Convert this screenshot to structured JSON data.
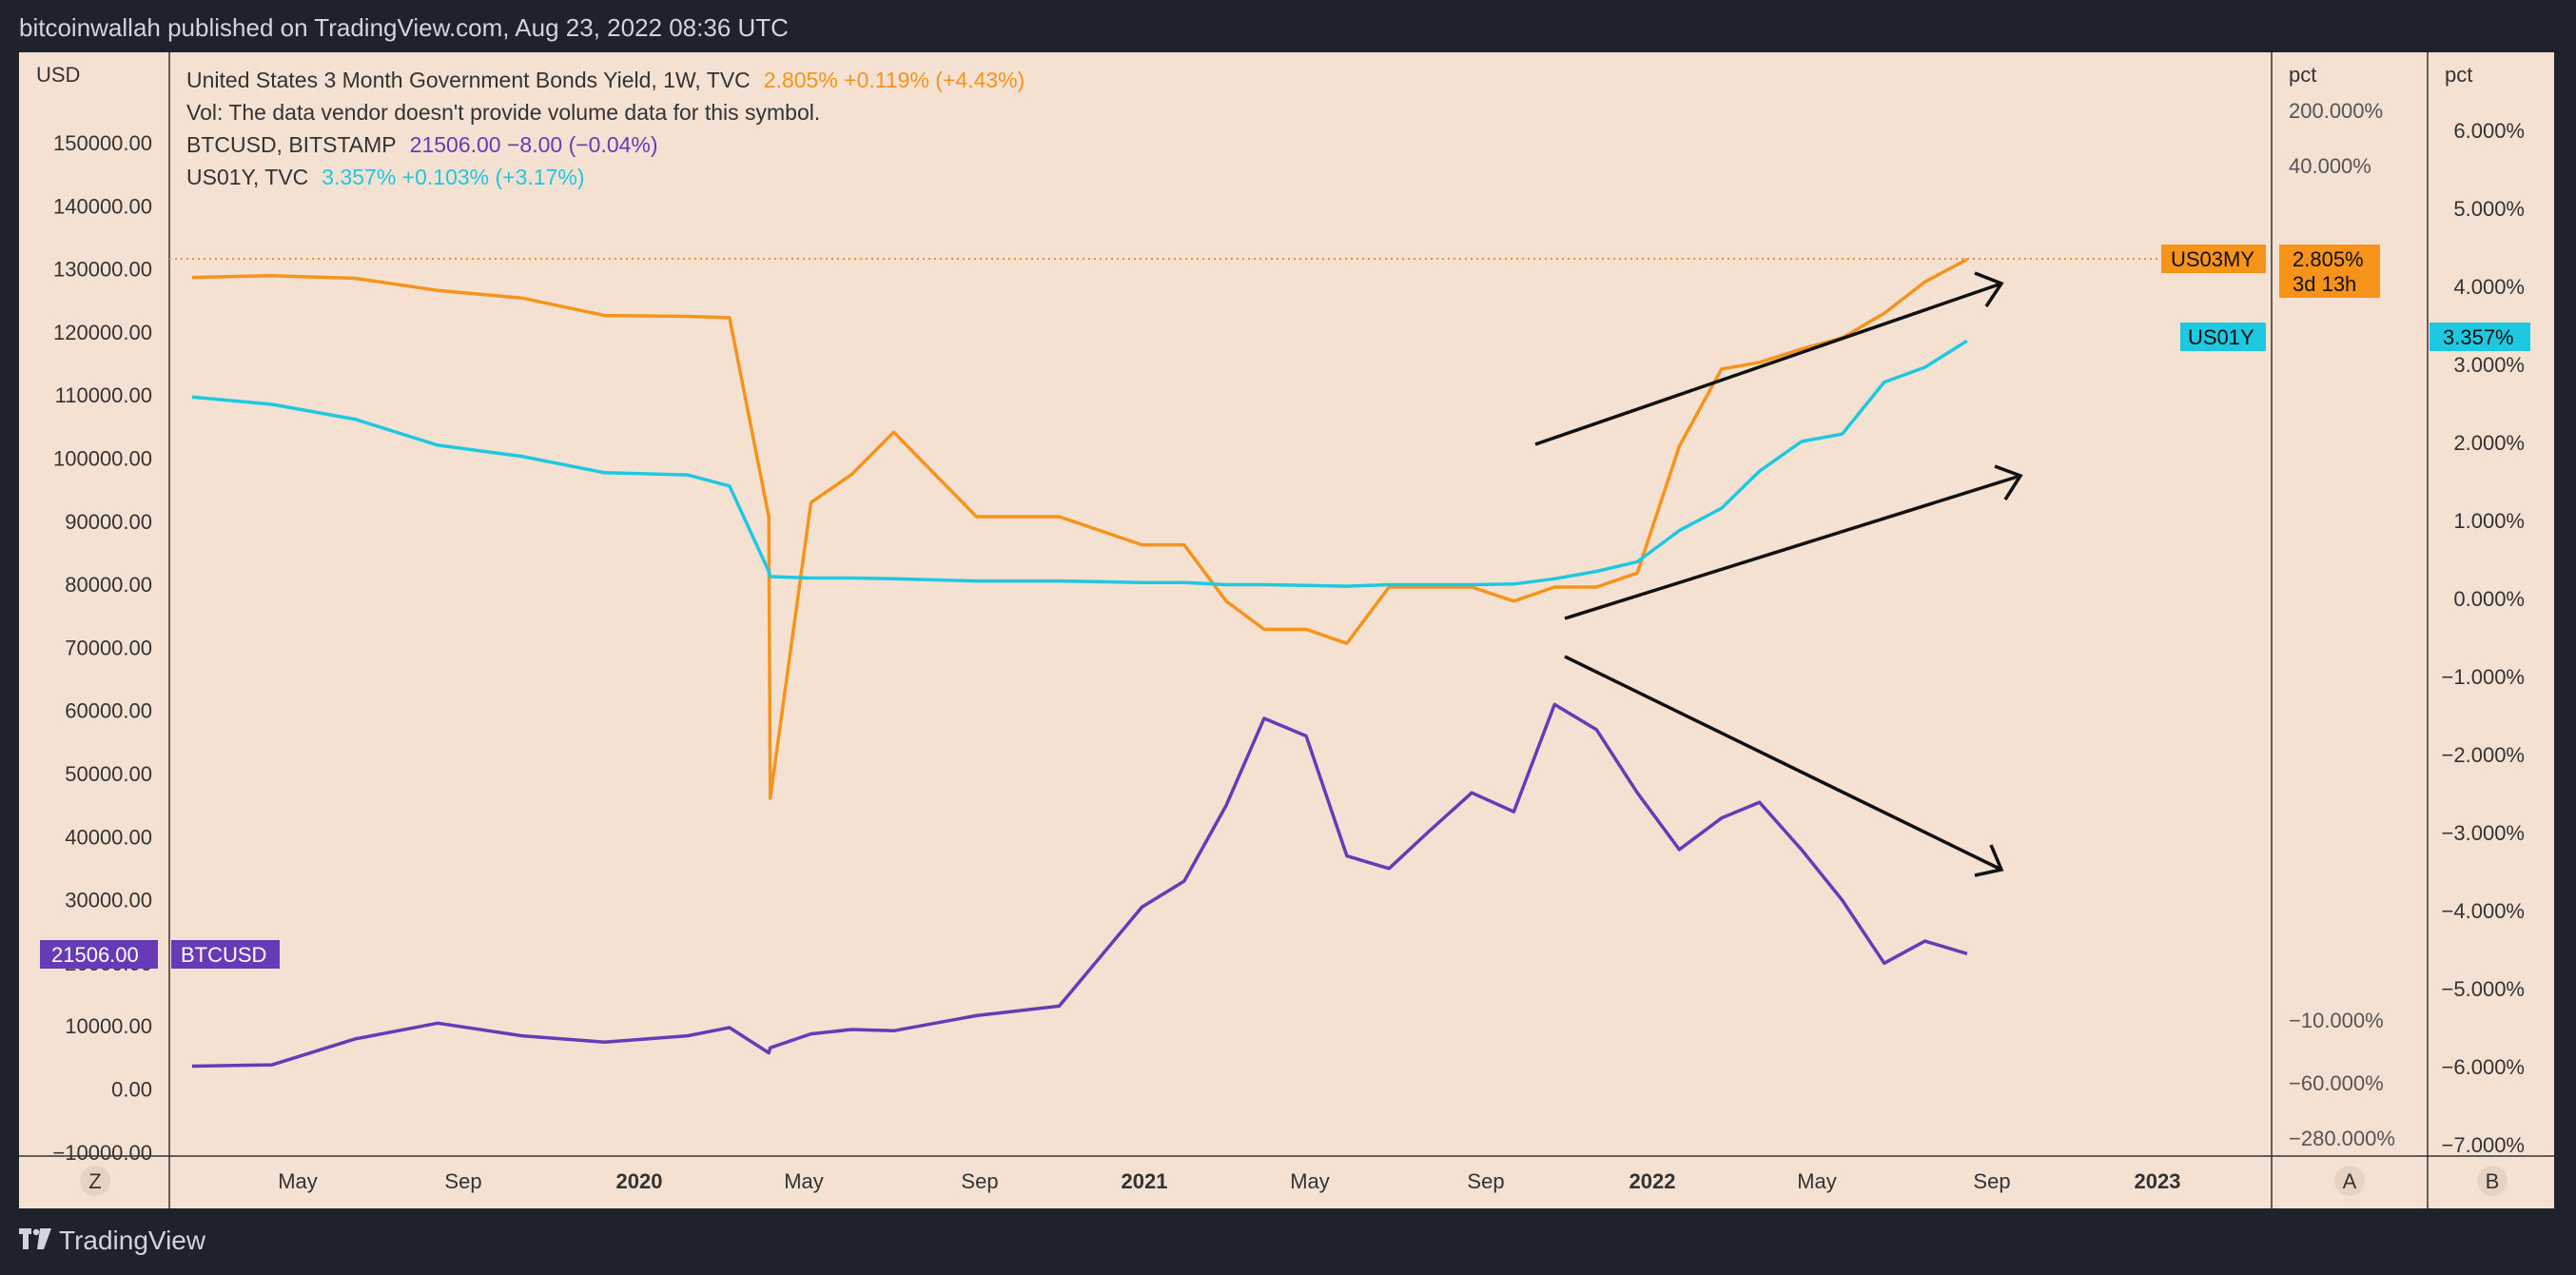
{
  "header": {
    "published": "bitcoinwallah published on TradingView.com, Aug 23, 2022 08:36 UTC"
  },
  "footer": {
    "brand": "TradingView",
    "logo_icon": "tradingview-logo-icon"
  },
  "legend": {
    "line1_name": "United States 3 Month Government Bonds Yield, 1W, TVC",
    "line1_vals": "2.805%  +0.119% (+4.43%)",
    "line2": "Vol: The data vendor doesn't provide volume data for this symbol.",
    "line3_name": "BTCUSD, BITSTAMP",
    "line3_vals": "21506.00  −8.00 (−0.04%)",
    "line4_name": "US01Y, TVC",
    "line4_vals": "3.357%  +0.103% (+3.17%)"
  },
  "colors": {
    "us03my": "#f7931a",
    "us01y": "#1ec8e1",
    "btc": "#673ab7",
    "bg": "#f4e1d2"
  },
  "axes": {
    "left_unit": "USD",
    "left_ticks": [
      "150000.00",
      "140000.00",
      "130000.00",
      "120000.00",
      "110000.00",
      "100000.00",
      "90000.00",
      "80000.00",
      "70000.00",
      "60000.00",
      "50000.00",
      "40000.00",
      "30000.00",
      "20000.00",
      "10000.00",
      "0.00",
      "−10000.00"
    ],
    "scaleA_unit": "pct",
    "scaleA_ticks": [
      "200.000%",
      "40.000%",
      "−10.000%",
      "−60.000%",
      "−280.000%"
    ],
    "scaleB_unit": "pct",
    "scaleB_ticks": [
      "6.000%",
      "5.000%",
      "4.000%",
      "3.000%",
      "2.000%",
      "1.000%",
      "0.000%",
      "−1.000%",
      "−2.000%",
      "−3.000%",
      "−4.000%",
      "−5.000%",
      "−6.000%",
      "−7.000%"
    ],
    "x_ticks": [
      "May",
      "Sep",
      "2020",
      "May",
      "Sep",
      "2021",
      "May",
      "Sep",
      "2022",
      "May",
      "Sep",
      "2023"
    ],
    "bottom_buttons": [
      "Z",
      "A",
      "B"
    ]
  },
  "labels": {
    "us03my_tag": "US03MY",
    "us03my_value": "2.805%",
    "us03my_countdown": "3d 13h",
    "us01y_tag": "US01Y",
    "us01y_value": "3.357%",
    "btc_value": "21506.00",
    "btc_tag": "BTCUSD"
  },
  "chart_data": {
    "type": "line",
    "title": "",
    "x": [
      "2019-01",
      "2019-03",
      "2019-05",
      "2019-07",
      "2019-09",
      "2019-11",
      "2020-01",
      "2020-02",
      "2020-03",
      "2020-03-16",
      "2020-04",
      "2020-05",
      "2020-06",
      "2020-08",
      "2020-10",
      "2020-12",
      "2021-01",
      "2021-02",
      "2021-03",
      "2021-04",
      "2021-05",
      "2021-06",
      "2021-07",
      "2021-08",
      "2021-09",
      "2021-10",
      "2021-11",
      "2021-12",
      "2022-01",
      "2022-02",
      "2022-03",
      "2022-04",
      "2022-05",
      "2022-06",
      "2022-07",
      "2022-08"
    ],
    "series": [
      {
        "name": "US03MY",
        "unit": "% yield",
        "values": [
          2.4,
          2.44,
          2.38,
          2.11,
          1.94,
          1.55,
          1.53,
          1.5,
          0.1,
          -0.1,
          0.11,
          0.13,
          0.16,
          0.1,
          0.1,
          0.08,
          0.08,
          0.04,
          0.02,
          0.02,
          0.01,
          0.05,
          0.05,
          0.05,
          0.04,
          0.05,
          0.05,
          0.06,
          0.15,
          0.35,
          0.5,
          0.8,
          1.05,
          1.6,
          2.3,
          2.805
        ]
      },
      {
        "name": "BTCUSD",
        "unit": "USD",
        "values": [
          3700,
          3900,
          8000,
          10500,
          8500,
          7500,
          8500,
          9800,
          5800,
          6600,
          8800,
          9500,
          9300,
          11700,
          13200,
          28900,
          33000,
          45000,
          58800,
          56000,
          37000,
          35000,
          41000,
          47000,
          44000,
          61000,
          57000,
          47000,
          38000,
          43000,
          45500,
          38000,
          30000,
          20000,
          23500,
          21506
        ]
      },
      {
        "name": "US01Y",
        "unit": "% yield",
        "values": [
          2.6,
          2.5,
          2.3,
          1.95,
          1.8,
          1.58,
          1.55,
          1.4,
          0.25,
          0.18,
          0.16,
          0.16,
          0.15,
          0.12,
          0.12,
          0.1,
          0.1,
          0.07,
          0.07,
          0.06,
          0.05,
          0.07,
          0.07,
          0.07,
          0.08,
          0.15,
          0.25,
          0.38,
          0.8,
          1.1,
          1.6,
          2.0,
          2.1,
          2.8,
          3.0,
          3.357
        ]
      }
    ],
    "annotations": [
      {
        "type": "arrow",
        "direction": "up",
        "near_series": "US03MY"
      },
      {
        "type": "arrow",
        "direction": "up",
        "near_series": "US01Y"
      },
      {
        "type": "arrow",
        "direction": "down",
        "near_series": "BTCUSD"
      }
    ],
    "left_axis": {
      "unit": "USD",
      "range": [
        -10000,
        150000
      ]
    }
  }
}
